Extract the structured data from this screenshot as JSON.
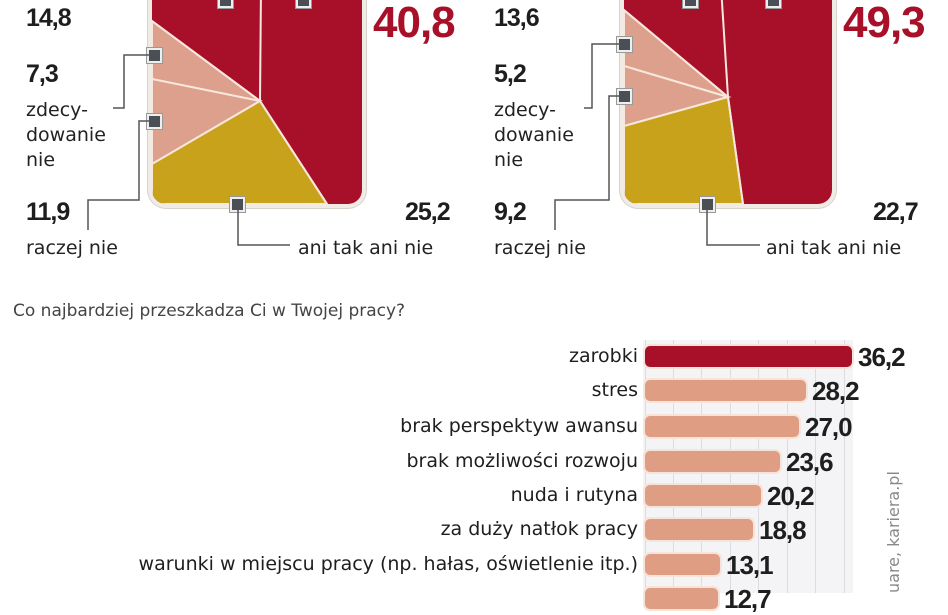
{
  "colors": {
    "dark_red": "#a8102a",
    "salmon": "#dca08c",
    "mustard": "#c9a21c",
    "marker": "#4a4f55",
    "bar_highlight": "#a8102a",
    "bar_default": "#df9d84"
  },
  "pie_left": {
    "values": {
      "top_left": "14,8",
      "big": "40,8",
      "zdecydowanie_nie": "7,3",
      "raczej_nie": "11,9",
      "ani_tak_ani_nie": "25,2"
    },
    "labels": {
      "zdecydowanie_nie_1": "zdecy-",
      "zdecydowanie_nie_2": "dowanie",
      "zdecydowanie_nie_3": "nie",
      "raczej_nie": "raczej nie",
      "ani_tak_ani_nie": "ani tak ani nie"
    }
  },
  "pie_right": {
    "values": {
      "top_left": "13,6",
      "big": "49,3",
      "zdecydowanie_nie": "5,2",
      "raczej_nie": "9,2",
      "ani_tak_ani_nie": "22,7"
    },
    "labels": {
      "zdecydowanie_nie_1": "zdecy-",
      "zdecydowanie_nie_2": "dowanie",
      "zdecydowanie_nie_3": "nie",
      "raczej_nie": "raczej nie",
      "ani_tak_ani_nie": "ani tak ani nie"
    }
  },
  "bar_section": {
    "title": "Co najbardziej przeszkadza Ci w Twojej pracy?",
    "credit": "uare, kariera.pl",
    "rows": [
      {
        "label": "zarobki",
        "value": "36,2",
        "num": 36.2,
        "highlight": true
      },
      {
        "label": "stres",
        "value": "28,2",
        "num": 28.2,
        "highlight": false
      },
      {
        "label": "brak perspektyw awansu",
        "value": "27,0",
        "num": 27.0,
        "highlight": false
      },
      {
        "label": "brak możliwości rozwoju",
        "value": "23,6",
        "num": 23.6,
        "highlight": false
      },
      {
        "label": "nuda i rutyna",
        "value": "20,2",
        "num": 20.2,
        "highlight": false
      },
      {
        "label": "za duży natłok pracy",
        "value": "18,8",
        "num": 18.8,
        "highlight": false
      },
      {
        "label": "warunki w miejscu pracy (np. hałas, oświetlenie itp.)",
        "value": "13,1",
        "num": 13.1,
        "highlight": false
      },
      {
        "label": "...",
        "value": "12,7",
        "num": 12.7,
        "highlight": false
      }
    ]
  },
  "chart_data": [
    {
      "type": "pie",
      "title": "",
      "categories": [
        "(top-left, label cut off)",
        "(top-right, label cut off)",
        "zdecydowanie nie",
        "raczej nie",
        "ani tak ani nie"
      ],
      "values": [
        14.8,
        40.8,
        7.3,
        11.9,
        25.2
      ],
      "colors": [
        "#a8102a",
        "#a8102a",
        "#dca08c",
        "#dca08c",
        "#c9a21c"
      ],
      "note": "Square-cropped pie; top labels cut off by image edge"
    },
    {
      "type": "pie",
      "title": "",
      "categories": [
        "(top-left, label cut off)",
        "(top-right, label cut off)",
        "zdecydowanie nie",
        "raczej nie",
        "ani tak ani nie"
      ],
      "values": [
        13.6,
        49.3,
        5.2,
        9.2,
        22.7
      ],
      "colors": [
        "#a8102a",
        "#a8102a",
        "#dca08c",
        "#dca08c",
        "#c9a21c"
      ],
      "note": "Square-cropped pie; top labels cut off by image edge"
    },
    {
      "type": "bar",
      "orientation": "horizontal",
      "title": "Co najbardziej przeszkadza Ci w Twojej pracy?",
      "categories": [
        "zarobki",
        "stres",
        "brak perspektyw awansu",
        "brak możliwości rozwoju",
        "nuda i rutyna",
        "za duży natłok pracy",
        "warunki w miejscu pracy (np. hałas, oświetlenie itp.)",
        "(cut off)"
      ],
      "values": [
        36.2,
        28.2,
        27.0,
        23.6,
        20.2,
        18.8,
        13.1,
        12.7
      ],
      "xlabel": "",
      "ylabel": "",
      "grid": true,
      "source": "uare, kariera.pl"
    }
  ]
}
